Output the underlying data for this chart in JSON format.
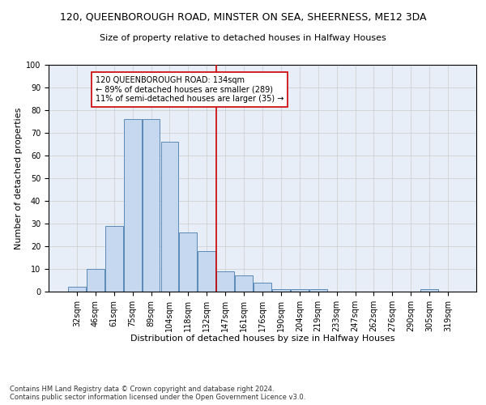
{
  "title": "120, QUEENBOROUGH ROAD, MINSTER ON SEA, SHEERNESS, ME12 3DA",
  "subtitle": "Size of property relative to detached houses in Halfway Houses",
  "xlabel": "Distribution of detached houses by size in Halfway Houses",
  "ylabel": "Number of detached properties",
  "categories": [
    "32sqm",
    "46sqm",
    "61sqm",
    "75sqm",
    "89sqm",
    "104sqm",
    "118sqm",
    "132sqm",
    "147sqm",
    "161sqm",
    "176sqm",
    "190sqm",
    "204sqm",
    "219sqm",
    "233sqm",
    "247sqm",
    "262sqm",
    "276sqm",
    "290sqm",
    "305sqm",
    "319sqm"
  ],
  "values": [
    2,
    10,
    29,
    76,
    76,
    66,
    26,
    18,
    9,
    7,
    4,
    1,
    1,
    1,
    0,
    0,
    0,
    0,
    0,
    1,
    0
  ],
  "bar_color": "#c5d8f0",
  "bar_edge_color": "#5a8ab8",
  "vline_x": 7.5,
  "vline_color": "#cc0000",
  "annotation_text": "120 QUEENBOROUGH ROAD: 134sqm\n← 89% of detached houses are smaller (289)\n11% of semi-detached houses are larger (35) →",
  "annotation_box_color": "white",
  "annotation_box_edge_color": "#cc0000",
  "ylim": [
    0,
    100
  ],
  "yticks": [
    0,
    10,
    20,
    30,
    40,
    50,
    60,
    70,
    80,
    90,
    100
  ],
  "grid_color": "#cccccc",
  "bg_color": "#e8eef8",
  "footer": "Contains HM Land Registry data © Crown copyright and database right 2024.\nContains public sector information licensed under the Open Government Licence v3.0.",
  "title_fontsize": 9,
  "subtitle_fontsize": 8,
  "xlabel_fontsize": 8,
  "ylabel_fontsize": 8,
  "tick_fontsize": 7,
  "annotation_fontsize": 7,
  "footer_fontsize": 6
}
